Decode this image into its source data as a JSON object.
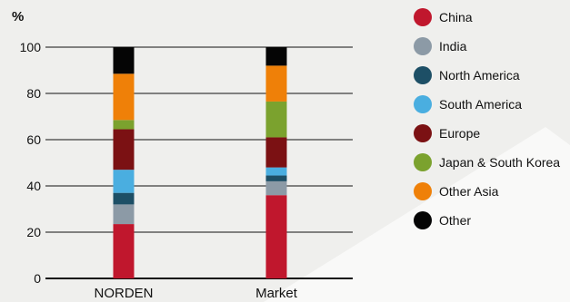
{
  "chart_data": {
    "type": "bar",
    "stacked": true,
    "ylabel": "%",
    "ylim": [
      0,
      100
    ],
    "yticks": [
      0,
      20,
      40,
      60,
      80,
      100
    ],
    "grid": true,
    "legend_position": "right",
    "categories": [
      "NORDEN",
      "Market"
    ],
    "series": [
      {
        "name": "China",
        "color": "#c0172d",
        "values": [
          23.5,
          36
        ]
      },
      {
        "name": "India",
        "color": "#8c9aa6",
        "values": [
          8.5,
          6
        ]
      },
      {
        "name": "North America",
        "color": "#1d4f66",
        "values": [
          5,
          2.5
        ]
      },
      {
        "name": "South America",
        "color": "#4aaee0",
        "values": [
          10,
          3.5
        ]
      },
      {
        "name": "Europe",
        "color": "#7b1113",
        "values": [
          17.5,
          13
        ]
      },
      {
        "name": "Japan & South Korea",
        "color": "#7ba22e",
        "values": [
          4,
          15.5
        ]
      },
      {
        "name": "Other Asia",
        "color": "#ef8008",
        "values": [
          20,
          15.5
        ]
      },
      {
        "name": "Other",
        "color": "#050505",
        "values": [
          11.5,
          8
        ]
      }
    ]
  }
}
